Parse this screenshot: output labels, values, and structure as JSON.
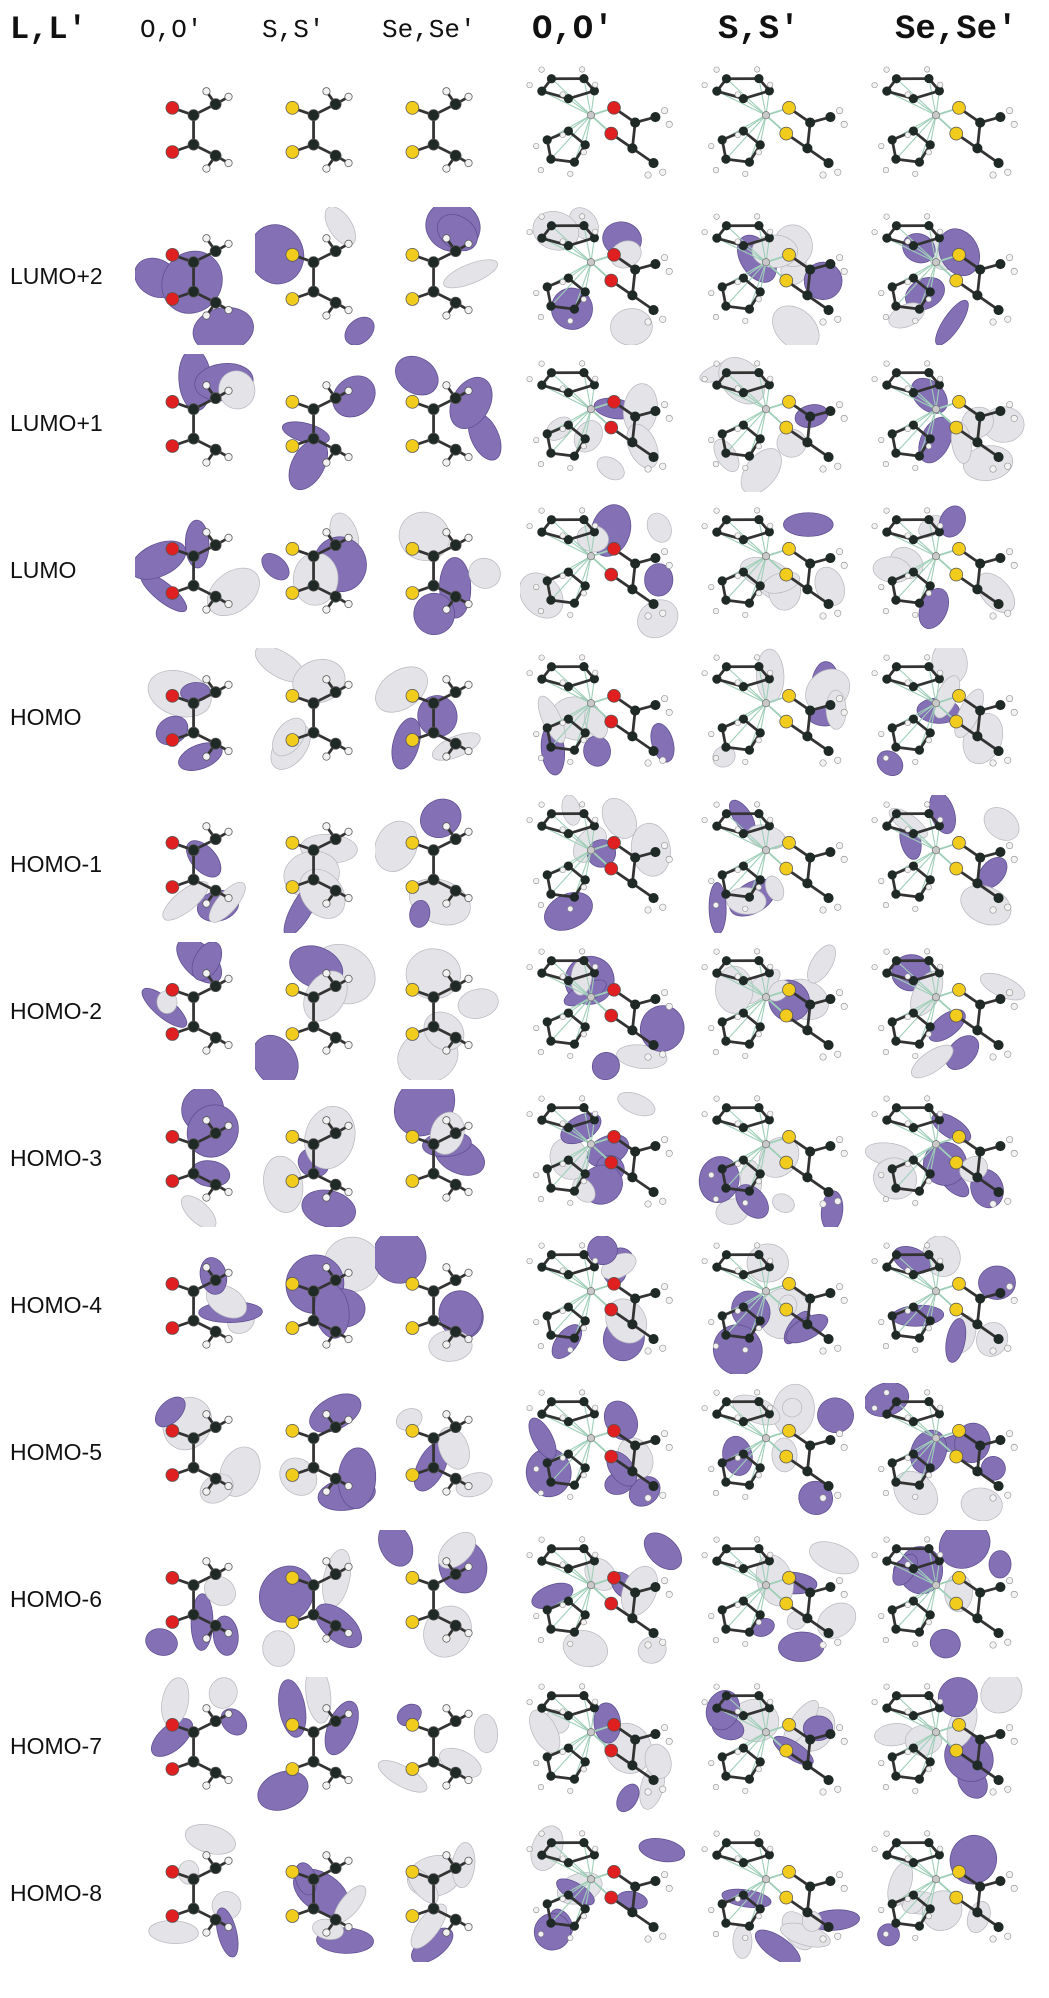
{
  "corner_label": "L,L'",
  "columns": [
    {
      "label": "O,O'",
      "style": "small",
      "kind": "ligand",
      "hetero": "#e02020",
      "hetero_label": ""
    },
    {
      "label": "S,S'",
      "style": "small",
      "kind": "ligand",
      "hetero": "#f2cc1c",
      "hetero_label": "S"
    },
    {
      "label": "Se,Se'",
      "style": "small",
      "kind": "ligand",
      "hetero": "#f2cc1c",
      "hetero_label": "Se"
    },
    {
      "label": "O,O'",
      "style": "big",
      "kind": "complex",
      "hetero": "#e02020",
      "hetero_label": ""
    },
    {
      "label": "S,S'",
      "style": "big",
      "kind": "complex",
      "hetero": "#f2cc1c",
      "hetero_label": "S"
    },
    {
      "label": "Se,Se'",
      "style": "big",
      "kind": "complex",
      "hetero": "#f2cc1c",
      "hetero_label": "Se"
    }
  ],
  "rows": [
    {
      "label": ""
    },
    {
      "label": "LUMO+2"
    },
    {
      "label": "LUMO+1"
    },
    {
      "label": "LUMO"
    },
    {
      "label": "HOMO"
    },
    {
      "label": "HOMO-1"
    },
    {
      "label": "HOMO-2"
    },
    {
      "label": "HOMO-3"
    },
    {
      "label": "HOMO-4"
    },
    {
      "label": "HOMO-5"
    },
    {
      "label": "HOMO-6"
    },
    {
      "label": "HOMO-7"
    },
    {
      "label": "HOMO-8"
    }
  ],
  "colors": {
    "lobe_positive": "#8470b5",
    "lobe_negative": "#e4e4e8",
    "carbon": "#1f2a26",
    "hydrogen": "#f2f2f2",
    "metal_bond": "#9fcfb8"
  }
}
